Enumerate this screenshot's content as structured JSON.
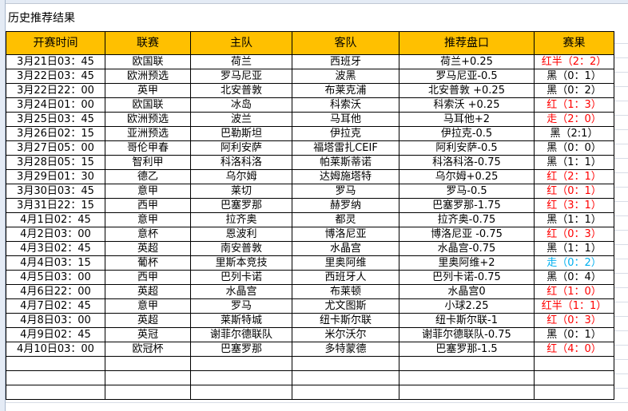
{
  "title": "历史推荐结果",
  "colors": {
    "header_bg": "#ffc000",
    "red": "#ff0000",
    "blue": "#00b0f0",
    "black": "#000000"
  },
  "headers": [
    "开赛时间",
    "联赛",
    "主队",
    "客队",
    "推荐盘口",
    "赛果"
  ],
  "rows": [
    {
      "time": "3月21日03：45",
      "league": "欧国联",
      "home": "荷兰",
      "away": "西班牙",
      "pick": "荷兰+0.25",
      "result": "红半（2：2）",
      "color": "red"
    },
    {
      "time": "3月22日03：45",
      "league": "欧洲预选",
      "home": "罗马尼亚",
      "away": "波黑",
      "pick": "罗马尼亚-0.5",
      "result": "黑（0：1）",
      "color": "black"
    },
    {
      "time": "3月22日22：00",
      "league": "英甲",
      "home": "北安普敦",
      "away": "布莱克浦",
      "pick": "北安普敦 +0.25",
      "result": "黑（0：2）",
      "color": "black"
    },
    {
      "time": "3月24日01：00",
      "league": "欧国联",
      "home": "冰岛",
      "away": "科索沃",
      "pick": "科索沃 +0.25",
      "result": "红（1：3）",
      "color": "red"
    },
    {
      "time": "3月25日03：45",
      "league": "欧洲预选",
      "home": "波兰",
      "away": "马耳他",
      "pick": "马耳他+2",
      "result": "走（2：0）",
      "color": "red"
    },
    {
      "time": "3月26日02：15",
      "league": "亚洲预选",
      "home": "巴勒斯坦",
      "away": "伊拉克",
      "pick": "伊拉克-0.5",
      "result": "黑（2:1）",
      "color": "black"
    },
    {
      "time": "3月27日05：00",
      "league": "哥伦甲春",
      "home": "阿利安萨",
      "away": "福塔雷扎CEIF",
      "pick": "阿利安萨-0.5",
      "result": "黑（0：0）",
      "color": "black"
    },
    {
      "time": "3月28日05：15",
      "league": "智利甲",
      "home": "科洛科洛",
      "away": "帕莱斯蒂诺",
      "pick": "科洛科洛-0.75",
      "result": "黑（1：1）",
      "color": "black"
    },
    {
      "time": "3月29日01：30",
      "league": "德乙",
      "home": "乌尔姆",
      "away": "达姆施塔特",
      "pick": "乌尔姆+0.25",
      "result": "红（2：1）",
      "color": "red"
    },
    {
      "time": "3月30日03：45",
      "league": "意甲",
      "home": "莱切",
      "away": "罗马",
      "pick": "罗马-0.5",
      "result": "红（0：1）",
      "color": "red"
    },
    {
      "time": "3月31日22：15",
      "league": "西甲",
      "home": "巴塞罗那",
      "away": "赫罗纳",
      "pick": "巴塞罗那-1.75",
      "result": "红（3：1）",
      "color": "red"
    },
    {
      "time": "4月1日02：45",
      "league": "意甲",
      "home": "拉齐奥",
      "away": "都灵",
      "pick": "拉齐奥-0.75",
      "result": "黑（1：1）",
      "color": "black"
    },
    {
      "time": "4月2日03：00",
      "league": "意杯",
      "home": "恩波利",
      "away": "博洛尼亚",
      "pick": "博洛尼亚 -0.75",
      "result": "红（0：3）",
      "color": "red"
    },
    {
      "time": "4月3日02：45",
      "league": "英超",
      "home": "南安普敦",
      "away": "水晶宫",
      "pick": "水晶宫-0.75",
      "result": "黑（1：1）",
      "color": "black"
    },
    {
      "time": "4月4日03：15",
      "league": "葡杯",
      "home": "里斯本竞技",
      "away": "里奥阿维",
      "pick": "里奥阿维+2",
      "result": "走（0：2）",
      "color": "blue"
    },
    {
      "time": "4月5日03：00",
      "league": "西甲",
      "home": "巴列卡诺",
      "away": "西班牙人",
      "pick": "巴列卡诺-0.75",
      "result": "黑（0：4）",
      "color": "black"
    },
    {
      "time": "4月6日22：00",
      "league": "英超",
      "home": "水晶宫",
      "away": "布莱顿",
      "pick": "水晶宫0",
      "result": "红（1：0）",
      "color": "red"
    },
    {
      "time": "4月7日02：45",
      "league": "意甲",
      "home": "罗马",
      "away": "尤文图斯",
      "pick": "小球2.25",
      "result": "红半（1：1）",
      "color": "red"
    },
    {
      "time": "4月8日03：00",
      "league": "英超",
      "home": "莱斯特城",
      "away": "纽卡斯尔联",
      "pick": "纽卡斯尔联-1",
      "result": "红（0：3）",
      "color": "red"
    },
    {
      "time": "4月9日02：45",
      "league": "英冠",
      "home": "谢菲尔德联队",
      "away": "米尔沃尔",
      "pick": "谢菲尔德联队-0.75",
      "result": "黑（0：1）",
      "color": "black"
    },
    {
      "time": "4月10日03：00",
      "league": "欧冠杯",
      "home": "巴塞罗那",
      "away": "多特蒙德",
      "pick": "巴塞罗那-1.5",
      "result": "红（4：0）",
      "color": "red"
    }
  ]
}
